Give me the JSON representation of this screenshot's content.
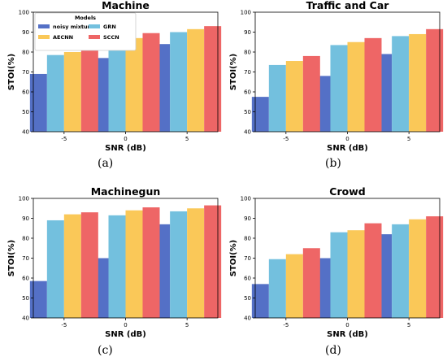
{
  "colors": {
    "noisy mixture": "#5470c6",
    "GRN": "#73c0de",
    "AECNN": "#fac858",
    "SCCN": "#ee6666"
  },
  "legend": {
    "title": "Models",
    "entries": [
      "noisy mixture",
      "GRN",
      "AECNN",
      "SCCN"
    ]
  },
  "chart_data": [
    {
      "type": "bar",
      "title": "Machine",
      "caption": "(a)",
      "xlabel": "SNR (dB)",
      "ylabel": "STOI(%)",
      "categories": [
        "-5",
        "0",
        "5"
      ],
      "ylim": [
        40,
        100
      ],
      "yticks": [
        "40",
        "50",
        "60",
        "70",
        "80",
        "90",
        "100"
      ],
      "legend": "top-left",
      "series": [
        {
          "name": "noisy mixture",
          "values": [
            69,
            77,
            84
          ]
        },
        {
          "name": "GRN",
          "values": [
            78.5,
            85.5,
            90
          ]
        },
        {
          "name": "AECNN",
          "values": [
            80,
            87,
            91.5
          ]
        },
        {
          "name": "SCCN",
          "values": [
            83.5,
            89.5,
            93
          ]
        }
      ]
    },
    {
      "type": "bar",
      "title": "Traffic and Car",
      "caption": "(b)",
      "xlabel": "SNR (dB)",
      "ylabel": "STOI(%)",
      "categories": [
        "-5",
        "0",
        "5"
      ],
      "ylim": [
        40,
        100
      ],
      "yticks": [
        "40",
        "50",
        "60",
        "70",
        "80",
        "90",
        "100"
      ],
      "series": [
        {
          "name": "noisy mixture",
          "values": [
            57.5,
            68,
            79
          ]
        },
        {
          "name": "GRN",
          "values": [
            73.5,
            83.5,
            88
          ]
        },
        {
          "name": "AECNN",
          "values": [
            75.5,
            85,
            89
          ]
        },
        {
          "name": "SCCN",
          "values": [
            78,
            87,
            91.5
          ]
        }
      ]
    },
    {
      "type": "bar",
      "title": "Machinegun",
      "caption": "(c)",
      "xlabel": "SNR (dB)",
      "ylabel": "STOI(%)",
      "categories": [
        "-5",
        "0",
        "5"
      ],
      "ylim": [
        40,
        100
      ],
      "yticks": [
        "40",
        "50",
        "60",
        "70",
        "80",
        "90",
        "100"
      ],
      "series": [
        {
          "name": "noisy mixture",
          "values": [
            58.5,
            70,
            87
          ]
        },
        {
          "name": "GRN",
          "values": [
            89,
            91.5,
            93.5
          ]
        },
        {
          "name": "AECNN",
          "values": [
            92,
            94,
            95
          ]
        },
        {
          "name": "SCCN",
          "values": [
            93,
            95.5,
            96.5
          ]
        }
      ]
    },
    {
      "type": "bar",
      "title": "Crowd",
      "caption": "(d)",
      "xlabel": "SNR (dB)",
      "ylabel": "STOI(%)",
      "categories": [
        "-5",
        "0",
        "5"
      ],
      "ylim": [
        40,
        100
      ],
      "yticks": [
        "40",
        "50",
        "60",
        "70",
        "80",
        "90",
        "100"
      ],
      "series": [
        {
          "name": "noisy mixture",
          "values": [
            57,
            70,
            82
          ]
        },
        {
          "name": "GRN",
          "values": [
            69.5,
            83,
            87
          ]
        },
        {
          "name": "AECNN",
          "values": [
            72,
            84,
            89.5
          ]
        },
        {
          "name": "SCCN",
          "values": [
            75,
            87.5,
            91
          ]
        }
      ]
    }
  ]
}
